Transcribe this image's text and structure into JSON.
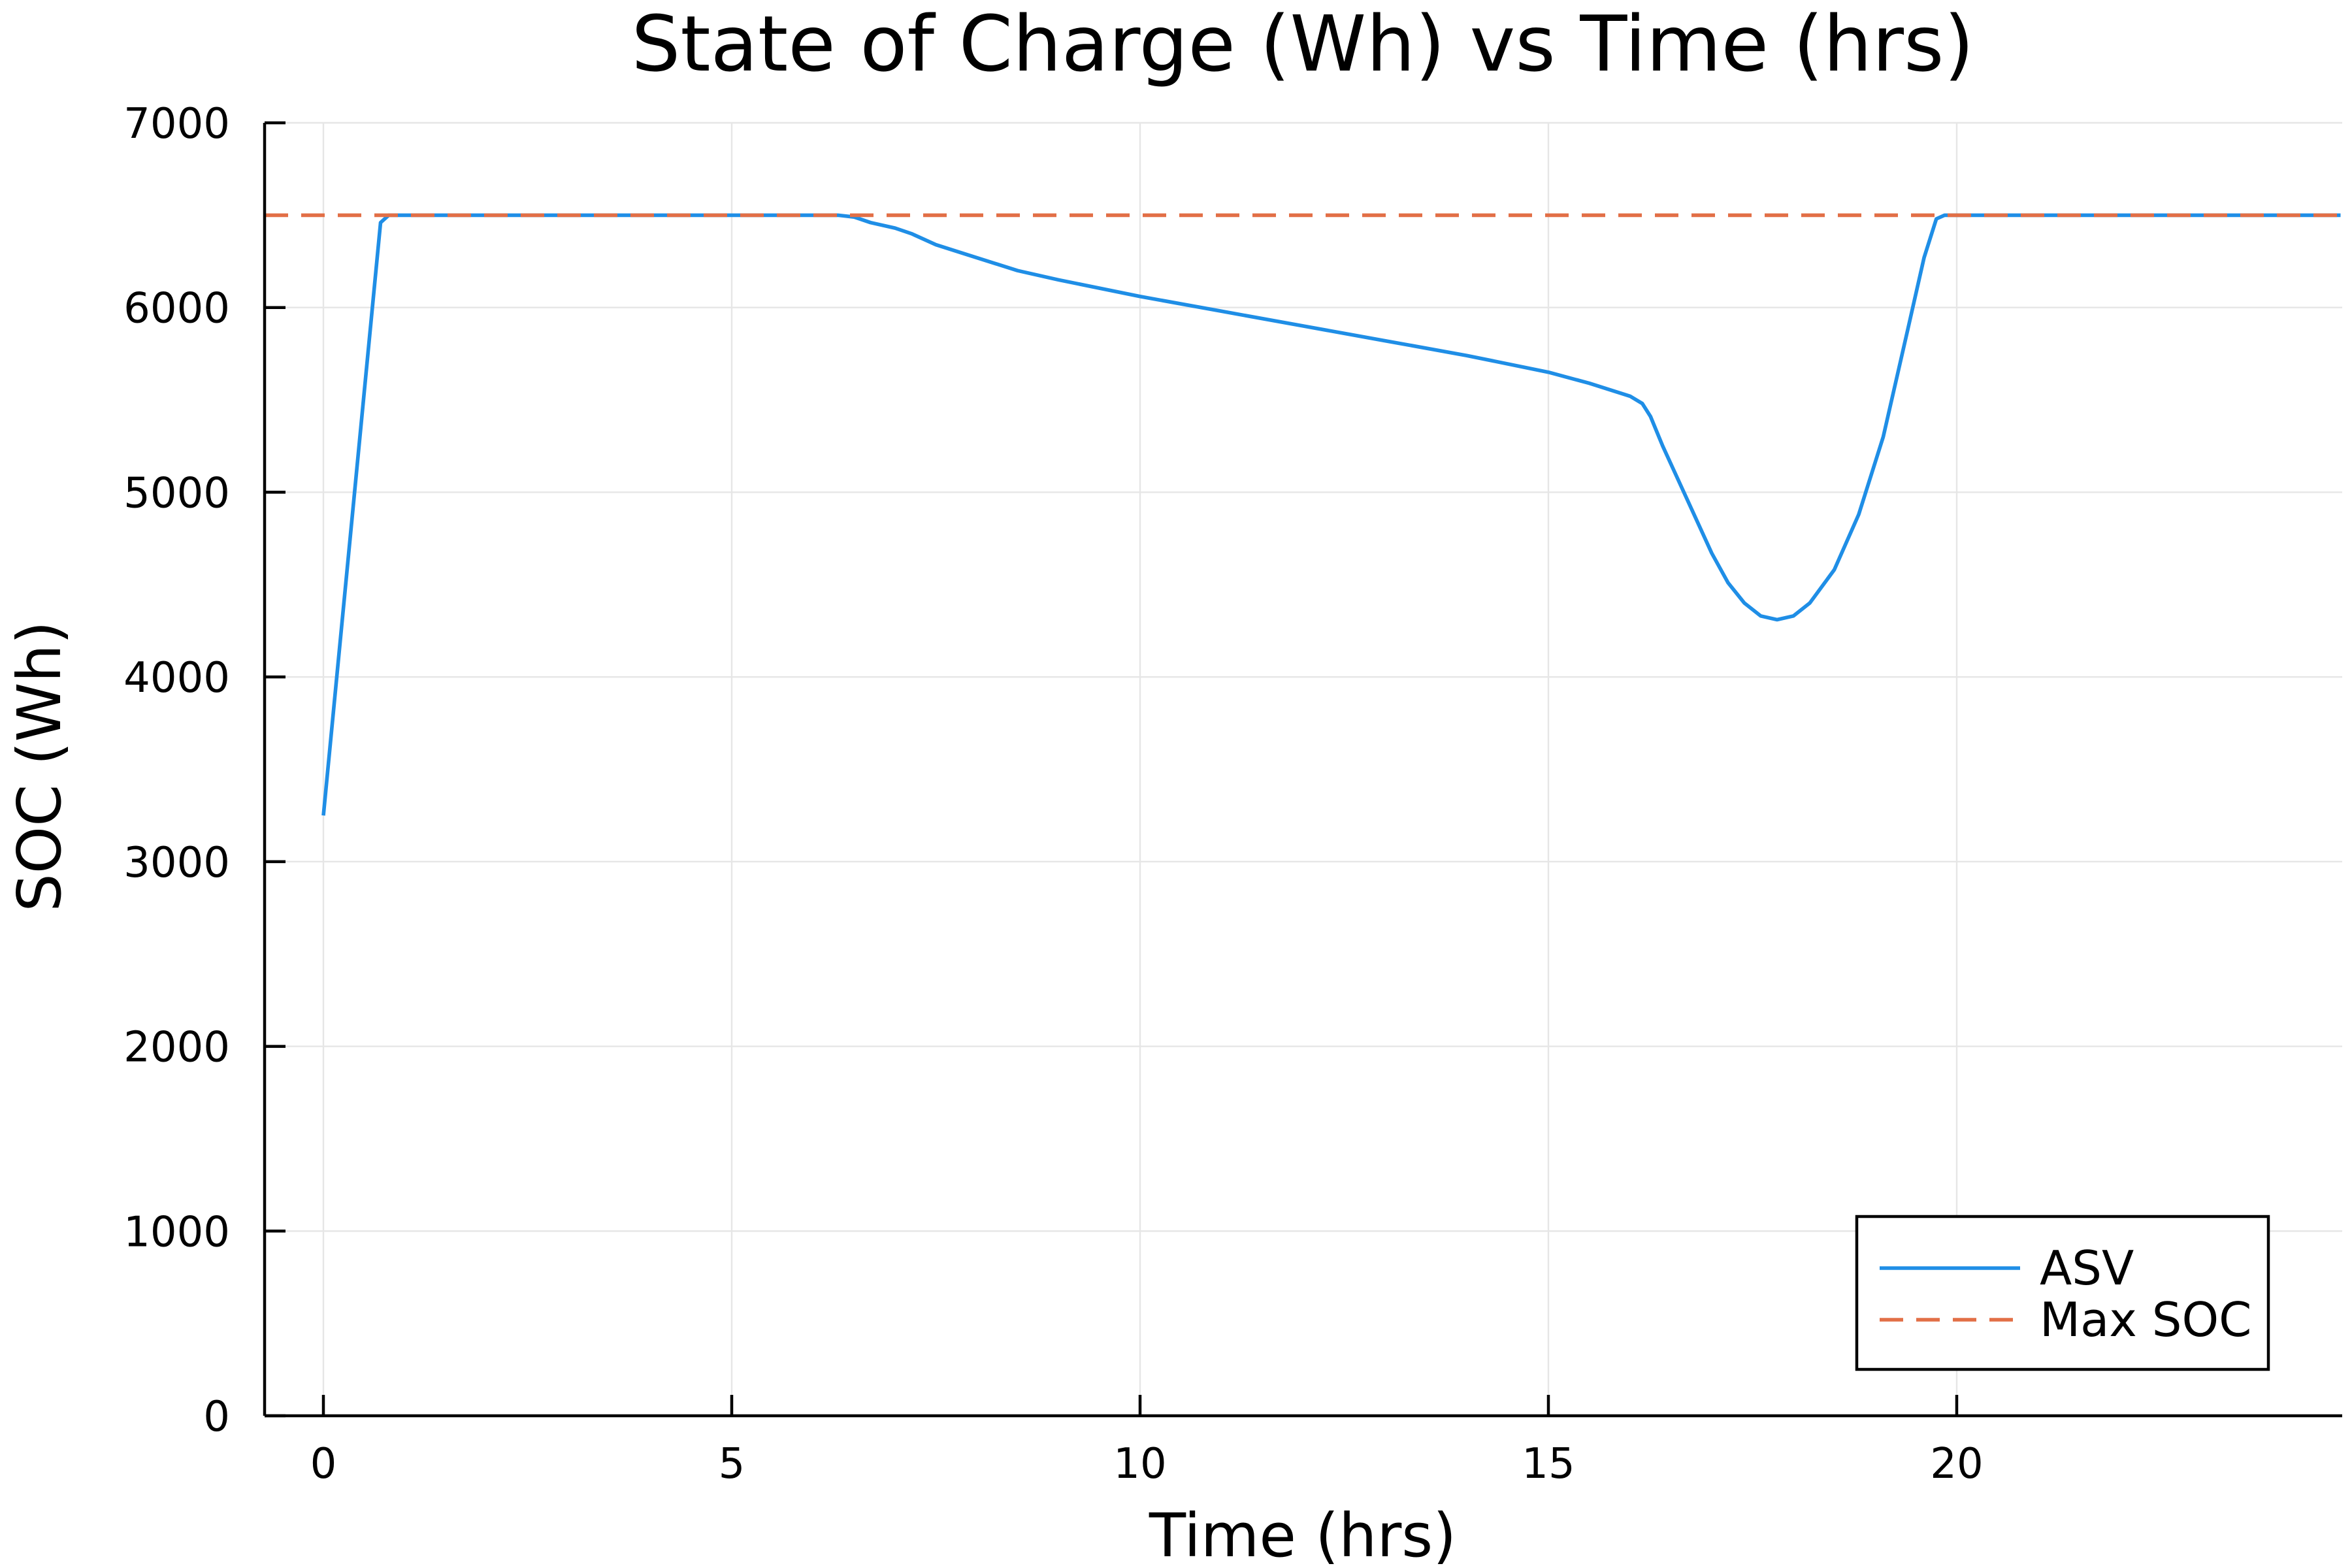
{
  "chart_data": {
    "type": "line",
    "title": "State of Charge (Wh) vs Time (hrs)",
    "xlabel": "Time (hrs)",
    "ylabel": "SOC (Wh)",
    "xlim": [
      -0.72,
      24.72
    ],
    "ylim": [
      0,
      7000
    ],
    "x_ticks": [
      0,
      5,
      10,
      15,
      20
    ],
    "y_ticks": [
      0,
      1000,
      2000,
      3000,
      4000,
      5000,
      6000,
      7000
    ],
    "x_tick_labels": [
      "0",
      "5",
      "10",
      "15",
      "20"
    ],
    "y_tick_labels": [
      "0",
      "1000",
      "2000",
      "3000",
      "4000",
      "5000",
      "6000",
      "7000"
    ],
    "grid": true,
    "legend_position": "bottom-right",
    "series": [
      {
        "name": "ASV",
        "color": "#1f8ee6",
        "style": "solid",
        "x": [
          0,
          0.7,
          0.8,
          1,
          2,
          3,
          4,
          5,
          6,
          6.3,
          6.5,
          6.7,
          7.0,
          7.2,
          7.5,
          8.0,
          8.5,
          9,
          10,
          11,
          12,
          13,
          14,
          15,
          15.5,
          16.0,
          16.15,
          16.25,
          16.4,
          16.7,
          17.0,
          17.2,
          17.4,
          17.6,
          17.8,
          18.0,
          18.2,
          18.5,
          18.8,
          19.1,
          19.4,
          19.6,
          19.75,
          19.85,
          20,
          21,
          22,
          23,
          24.7
        ],
        "y": [
          3250,
          6460,
          6500,
          6500,
          6500,
          6500,
          6500,
          6500,
          6500,
          6500,
          6490,
          6460,
          6430,
          6400,
          6340,
          6270,
          6200,
          6150,
          6060,
          5980,
          5900,
          5820,
          5740,
          5650,
          5590,
          5520,
          5480,
          5410,
          5250,
          4960,
          4670,
          4510,
          4400,
          4330,
          4310,
          4330,
          4400,
          4580,
          4880,
          5300,
          5880,
          6270,
          6480,
          6500,
          6500,
          6500,
          6500,
          6500,
          6500
        ]
      },
      {
        "name": "Max SOC",
        "color": "#e26f46",
        "style": "dashed",
        "x": [
          -0.72,
          24.72
        ],
        "y": [
          6500,
          6500
        ]
      }
    ]
  }
}
